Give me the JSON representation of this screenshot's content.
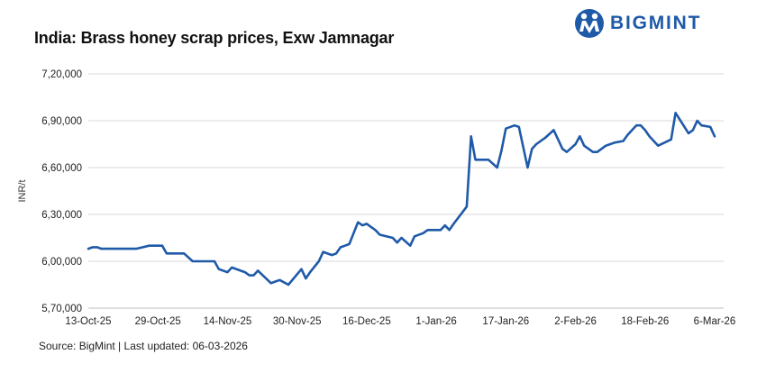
{
  "header": {
    "title": "India: Brass honey scrap prices, Exw Jamnagar",
    "brand": "BIGMINT",
    "brand_color": "#1f5aa8"
  },
  "footer": {
    "source": "Source: BigMint",
    "separator": "|",
    "updated": "Last updated: 06-03-2026"
  },
  "chart_data": {
    "type": "line",
    "title": "India: Brass honey scrap prices, Exw Jamnagar",
    "xlabel": "",
    "ylabel": "INR/t",
    "ylim": [
      570000,
      720000
    ],
    "yticks": [
      570000,
      600000,
      630000,
      660000,
      690000,
      720000
    ],
    "ytick_labels": [
      "5,70,000",
      "6,00,000",
      "6,30,000",
      "6,60,000",
      "6,90,000",
      "7,20,000"
    ],
    "xlim": [
      "2025-10-13",
      "2026-03-06"
    ],
    "xticks": [
      "2025-10-13",
      "2025-10-29",
      "2025-11-14",
      "2025-11-30",
      "2025-12-16",
      "2026-01-01",
      "2026-01-17",
      "2026-02-02",
      "2026-02-18",
      "2026-03-06"
    ],
    "xtick_labels": [
      "13-Oct-25",
      "29-Oct-25",
      "14-Nov-25",
      "30-Nov-25",
      "16-Dec-25",
      "1-Jan-26",
      "17-Jan-26",
      "2-Feb-26",
      "18-Feb-26",
      "6-Mar-26"
    ],
    "grid": true,
    "line_color": "#1f5aa8",
    "series": [
      {
        "x": [
          "2025-10-13",
          "2025-10-14",
          "2025-10-15",
          "2025-10-16",
          "2025-10-17",
          "2025-10-20",
          "2025-10-24",
          "2025-10-27",
          "2025-10-28",
          "2025-10-30",
          "2025-10-31",
          "2025-11-01",
          "2025-11-04",
          "2025-11-06",
          "2025-11-07",
          "2025-11-10",
          "2025-11-11",
          "2025-11-12",
          "2025-11-14",
          "2025-11-15",
          "2025-11-17",
          "2025-11-18",
          "2025-11-19",
          "2025-11-20",
          "2025-11-21",
          "2025-11-24",
          "2025-11-25",
          "2025-11-26",
          "2025-11-28",
          "2025-12-01",
          "2025-12-02",
          "2025-12-03",
          "2025-12-05",
          "2025-12-06",
          "2025-12-08",
          "2025-12-09",
          "2025-12-10",
          "2025-12-11",
          "2025-12-12",
          "2025-12-14",
          "2025-12-15",
          "2025-12-16",
          "2025-12-17",
          "2025-12-18",
          "2025-12-19",
          "2025-12-22",
          "2025-12-23",
          "2025-12-24",
          "2025-12-26",
          "2025-12-27",
          "2025-12-29",
          "2025-12-30",
          "2026-01-02",
          "2026-01-03",
          "2026-01-04",
          "2026-01-05",
          "2026-01-08",
          "2026-01-09",
          "2026-01-10",
          "2026-01-13",
          "2026-01-15",
          "2026-01-16",
          "2026-01-17",
          "2026-01-19",
          "2026-01-20",
          "2026-01-22",
          "2026-01-23",
          "2026-01-24",
          "2026-01-26",
          "2026-01-28",
          "2026-01-29",
          "2026-01-30",
          "2026-01-31",
          "2026-02-02",
          "2026-02-03",
          "2026-02-04",
          "2026-02-06",
          "2026-02-07",
          "2026-02-09",
          "2026-02-10",
          "2026-02-11",
          "2026-02-13",
          "2026-02-14",
          "2026-02-16",
          "2026-02-17",
          "2026-02-18",
          "2026-02-19",
          "2026-02-20",
          "2026-02-21",
          "2026-02-24",
          "2026-02-25",
          "2026-02-28",
          "2026-03-01",
          "2026-03-02",
          "2026-03-03",
          "2026-03-05",
          "2026-03-06"
        ],
        "y": [
          608000,
          609000,
          609000,
          608000,
          608000,
          608000,
          608000,
          610000,
          610000,
          610000,
          605000,
          605000,
          605000,
          600000,
          600000,
          600000,
          600000,
          595000,
          593000,
          596000,
          594000,
          593000,
          591000,
          591000,
          594000,
          586000,
          587000,
          588000,
          585000,
          595000,
          589000,
          593000,
          600000,
          606000,
          604000,
          605000,
          609000,
          610000,
          611000,
          625000,
          623000,
          624000,
          622000,
          620000,
          617000,
          615000,
          612000,
          615000,
          610000,
          616000,
          618000,
          620000,
          620000,
          623000,
          620000,
          624000,
          635000,
          680000,
          665000,
          665000,
          660000,
          671000,
          685000,
          687000,
          686000,
          660000,
          672000,
          675000,
          679000,
          684000,
          678000,
          672000,
          670000,
          675000,
          680000,
          674000,
          670000,
          670000,
          674000,
          675000,
          676000,
          677000,
          681000,
          687000,
          687000,
          684000,
          680000,
          677000,
          674000,
          678000,
          695000,
          682000,
          684000,
          690000,
          687000,
          686000,
          680000
        ]
      }
    ]
  }
}
